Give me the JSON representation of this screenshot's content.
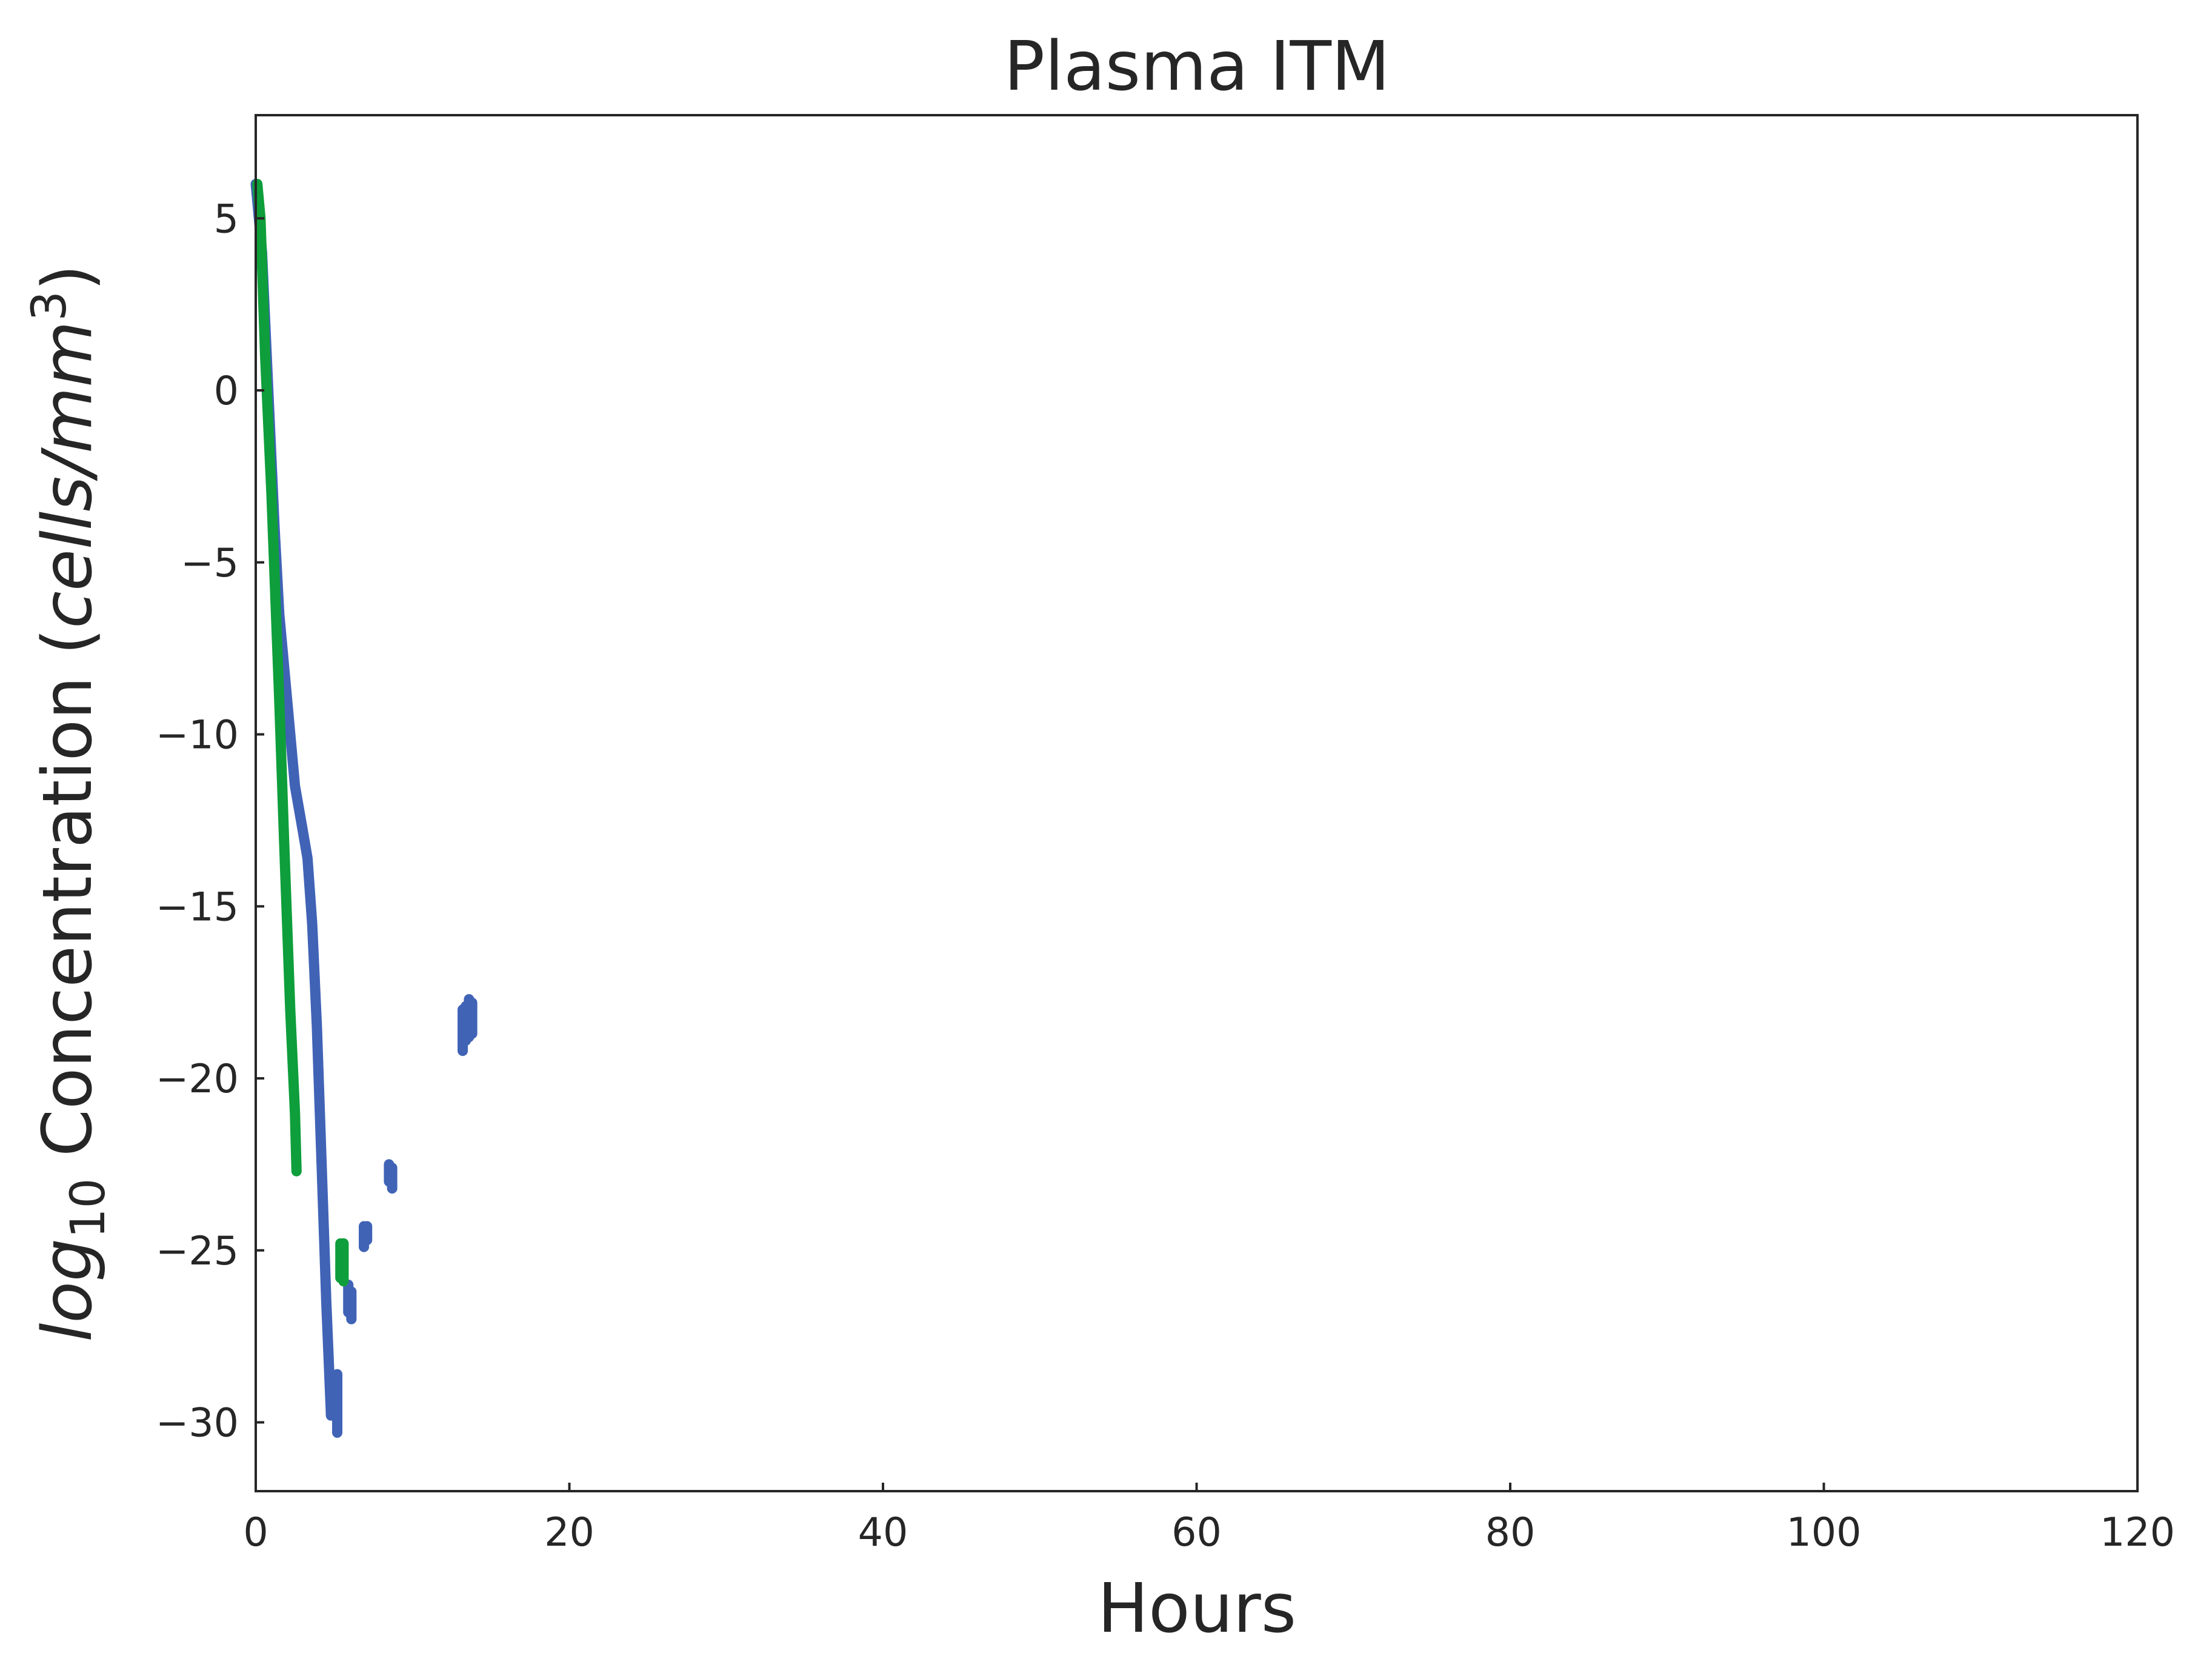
{
  "chart_data": {
    "type": "line",
    "title": "Plasma ITM",
    "xlabel": "Hours",
    "ylabel": {
      "log": "log",
      "sub": "10",
      "mid": " Concentration (",
      "unit": "cells/mm",
      "sup": "3",
      "close": ")"
    },
    "xlim": [
      0,
      120
    ],
    "ylim": [
      -32,
      8
    ],
    "xticks": [
      0,
      20,
      40,
      60,
      80,
      100,
      120
    ],
    "xtick_labels": [
      "0",
      "20",
      "40",
      "60",
      "80",
      "100",
      "120"
    ],
    "yticks": [
      5,
      0,
      -5,
      -10,
      -15,
      -20,
      -25,
      -30
    ],
    "ytick_labels": [
      "5",
      "0",
      "−5",
      "−10",
      "−15",
      "−20",
      "−25",
      "−30"
    ],
    "grid": false,
    "legend": "none",
    "series": [
      {
        "color": "#4063b6",
        "segments": [
          [
            [
              0,
              6.0
            ],
            [
              0.4,
              4.0
            ],
            [
              0.8,
              0.0
            ],
            [
              1.2,
              -4.0
            ],
            [
              1.5,
              -6.5
            ],
            [
              2.0,
              -9.0
            ],
            [
              2.5,
              -11.5
            ],
            [
              3.0,
              -12.8
            ],
            [
              3.3,
              -13.6
            ],
            [
              3.6,
              -15.5
            ],
            [
              3.9,
              -18.5
            ],
            [
              4.2,
              -22.5
            ],
            [
              4.5,
              -26.5
            ],
            [
              4.8,
              -29.8
            ]
          ],
          [
            [
              4.8,
              -29.8
            ],
            [
              4.8,
              -28.6
            ]
          ],
          [
            [
              5.2,
              -30.3
            ],
            [
              5.2,
              -28.6
            ]
          ],
          [
            [
              5.9,
              -26.8
            ],
            [
              5.9,
              -26.0
            ]
          ],
          [
            [
              6.1,
              -27.0
            ],
            [
              6.1,
              -26.2
            ]
          ],
          [
            [
              6.9,
              -24.9
            ],
            [
              6.9,
              -24.3
            ]
          ],
          [
            [
              7.1,
              -24.7
            ],
            [
              7.1,
              -24.3
            ]
          ],
          [
            [
              8.5,
              -23.0
            ],
            [
              8.5,
              -22.5
            ]
          ],
          [
            [
              8.7,
              -23.2
            ],
            [
              8.7,
              -22.6
            ]
          ],
          [
            [
              13.2,
              -19.2
            ],
            [
              13.2,
              -18.0
            ]
          ],
          [
            [
              13.4,
              -18.9
            ],
            [
              13.4,
              -17.9
            ]
          ],
          [
            [
              13.6,
              -18.8
            ],
            [
              13.6,
              -17.7
            ]
          ],
          [
            [
              13.8,
              -18.7
            ],
            [
              13.8,
              -17.8
            ]
          ]
        ]
      },
      {
        "color": "#0e9e3b",
        "segments": [
          [
            [
              0.1,
              6.0
            ],
            [
              0.3,
              5.0
            ],
            [
              0.6,
              1.0
            ],
            [
              1.0,
              -3.0
            ],
            [
              1.5,
              -9.0
            ],
            [
              1.8,
              -13.0
            ],
            [
              2.2,
              -18.0
            ],
            [
              2.5,
              -21.0
            ],
            [
              2.6,
              -22.7
            ]
          ],
          [
            [
              5.4,
              -25.8
            ],
            [
              5.4,
              -24.8
            ]
          ],
          [
            [
              5.6,
              -25.9
            ],
            [
              5.6,
              -24.8
            ]
          ]
        ]
      }
    ]
  }
}
